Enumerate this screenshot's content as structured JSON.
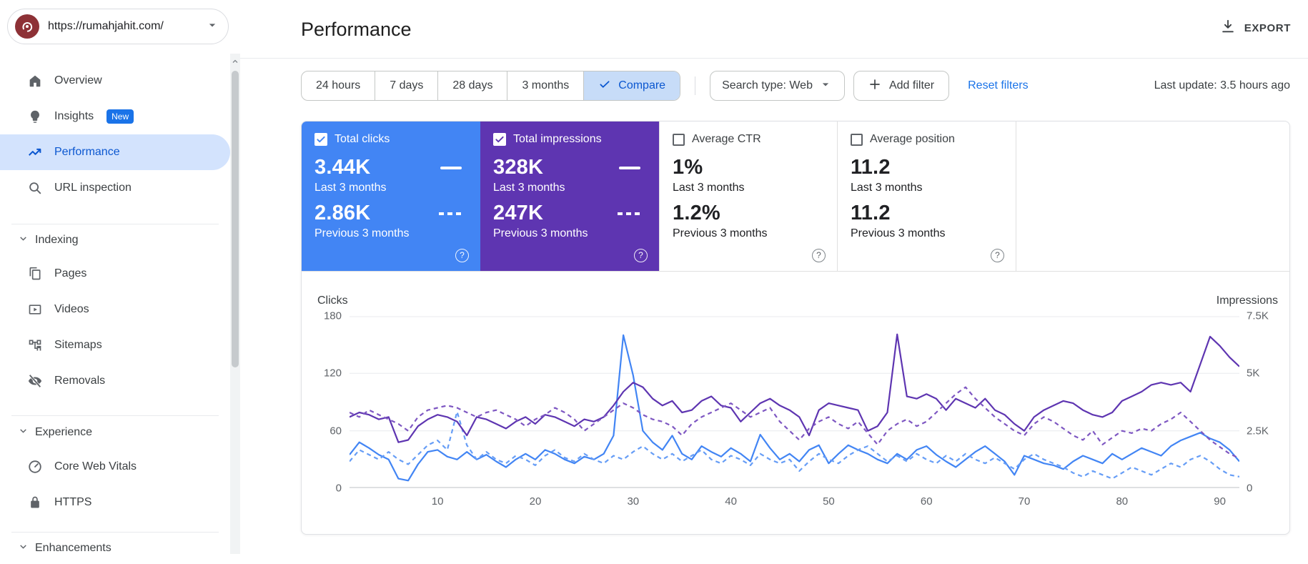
{
  "sidebar": {
    "property_url": "https://rumahjahit.com/",
    "items": [
      {
        "label": "Overview"
      },
      {
        "label": "Insights",
        "badge": "New"
      },
      {
        "label": "Performance"
      },
      {
        "label": "URL inspection"
      }
    ],
    "sections": [
      {
        "title": "Indexing",
        "items": [
          {
            "label": "Pages"
          },
          {
            "label": "Videos"
          },
          {
            "label": "Sitemaps"
          },
          {
            "label": "Removals"
          }
        ]
      },
      {
        "title": "Experience",
        "items": [
          {
            "label": "Core Web Vitals"
          },
          {
            "label": "HTTPS"
          }
        ]
      },
      {
        "title": "Enhancements",
        "items": []
      }
    ]
  },
  "header": {
    "title": "Performance",
    "export_label": "EXPORT"
  },
  "filters": {
    "ranges": [
      "24 hours",
      "7 days",
      "28 days",
      "3 months"
    ],
    "compare_label": "Compare",
    "search_type_label": "Search type: Web",
    "add_filter_label": "Add filter",
    "reset_label": "Reset filters",
    "last_update": "Last update: 3.5 hours ago"
  },
  "cards": [
    {
      "label": "Total clicks",
      "checked": true,
      "color": "#4285f4",
      "value": "3.44K",
      "period": "Last 3 months",
      "prev_value": "2.86K",
      "prev_period": "Previous 3 months"
    },
    {
      "label": "Total impressions",
      "checked": true,
      "color": "#5e35b1",
      "value": "328K",
      "period": "Last 3 months",
      "prev_value": "247K",
      "prev_period": "Previous 3 months"
    },
    {
      "label": "Average CTR",
      "checked": false,
      "value": "1%",
      "period": "Last 3 months",
      "prev_value": "1.2%",
      "prev_period": "Previous 3 months"
    },
    {
      "label": "Average position",
      "checked": false,
      "value": "11.2",
      "period": "Last 3 months",
      "prev_value": "11.2",
      "prev_period": "Previous 3 months"
    }
  ],
  "chart_data": {
    "type": "line",
    "x_range": [
      1,
      92
    ],
    "x_label_ticks": [
      "10",
      "20",
      "30",
      "40",
      "50",
      "60",
      "70",
      "80",
      "90"
    ],
    "grid": "horizontal",
    "left_axis": {
      "label": "Clicks",
      "max": 180,
      "ticks": [
        "180",
        "120",
        "60",
        "0"
      ]
    },
    "right_axis": {
      "label": "Impressions",
      "max": 7500,
      "ticks": [
        "7.5K",
        "5K",
        "2.5K",
        "0"
      ]
    },
    "series": [
      {
        "id": "clicks-current",
        "name": "Total clicks — Last 3 months",
        "axis": "left",
        "style": "solid",
        "color": "#4285f4",
        "values": [
          35,
          48,
          42,
          35,
          30,
          10,
          8,
          25,
          38,
          40,
          33,
          30,
          38,
          30,
          35,
          28,
          22,
          30,
          36,
          30,
          40,
          36,
          30,
          26,
          33,
          30,
          36,
          55,
          160,
          118,
          60,
          48,
          40,
          55,
          36,
          30,
          44,
          38,
          33,
          42,
          36,
          28,
          56,
          42,
          30,
          36,
          28,
          40,
          45,
          26,
          36,
          45,
          40,
          36,
          30,
          26,
          36,
          30,
          40,
          44,
          35,
          28,
          22,
          30,
          38,
          44,
          36,
          28,
          14,
          34,
          30,
          26,
          24,
          20,
          28,
          34,
          30,
          26,
          36,
          30,
          36,
          42,
          38,
          34,
          44,
          50,
          54,
          58,
          52,
          48,
          40,
          28
        ]
      },
      {
        "id": "clicks-previous",
        "name": "Total clicks — Previous 3 months",
        "axis": "left",
        "style": "dashed",
        "color": "#669df6",
        "values": [
          28,
          40,
          35,
          30,
          38,
          30,
          25,
          35,
          45,
          50,
          40,
          80,
          45,
          30,
          38,
          30,
          26,
          34,
          30,
          24,
          34,
          40,
          32,
          28,
          36,
          30,
          26,
          34,
          30,
          38,
          44,
          36,
          30,
          36,
          28,
          34,
          40,
          30,
          26,
          34,
          30,
          24,
          36,
          30,
          26,
          30,
          18,
          28,
          36,
          30,
          26,
          34,
          40,
          44,
          36,
          28,
          34,
          28,
          36,
          30,
          26,
          34,
          28,
          36,
          30,
          26,
          32,
          26,
          20,
          30,
          36,
          30,
          26,
          22,
          16,
          12,
          18,
          14,
          10,
          16,
          22,
          18,
          14,
          20,
          26,
          22,
          30,
          34,
          28,
          20,
          14,
          12
        ]
      },
      {
        "id": "impressions-current",
        "name": "Total impressions — Last 3 months",
        "axis": "right",
        "style": "solid",
        "color": "#5e35b1",
        "values": [
          3100,
          3300,
          3200,
          3000,
          3100,
          2000,
          2100,
          2700,
          3000,
          3200,
          3100,
          2900,
          2300,
          3100,
          3000,
          2800,
          2600,
          2900,
          3100,
          2800,
          3200,
          3100,
          2900,
          2700,
          3000,
          2900,
          3100,
          3600,
          4200,
          4600,
          4400,
          3900,
          3600,
          3800,
          3300,
          3400,
          3800,
          4000,
          3600,
          3500,
          2900,
          3300,
          3700,
          3900,
          3600,
          3400,
          3100,
          2300,
          3400,
          3700,
          3600,
          3500,
          3400,
          2500,
          2700,
          3300,
          6700,
          4000,
          3900,
          4100,
          3900,
          3400,
          3900,
          3700,
          3500,
          3900,
          3400,
          3200,
          2800,
          2500,
          3100,
          3400,
          3600,
          3800,
          3700,
          3400,
          3200,
          3100,
          3300,
          3800,
          4000,
          4200,
          4500,
          4600,
          4500,
          4600,
          4200,
          5400,
          6600,
          6200,
          5700,
          5300
        ]
      },
      {
        "id": "impressions-previous",
        "name": "Total impressions — Previous 3 months",
        "axis": "right",
        "style": "dashed",
        "color": "#7e57c2",
        "values": [
          3300,
          3100,
          3400,
          3200,
          3000,
          2800,
          2500,
          3100,
          3400,
          3500,
          3600,
          3500,
          3300,
          3100,
          3300,
          3400,
          3200,
          3000,
          2700,
          3000,
          3200,
          3500,
          3300,
          3000,
          2500,
          2800,
          3100,
          3400,
          3700,
          3500,
          3200,
          3000,
          2900,
          2700,
          2300,
          2800,
          3100,
          3300,
          3500,
          3700,
          3400,
          3100,
          3300,
          3500,
          2900,
          2500,
          2100,
          2600,
          2900,
          3100,
          2800,
          2600,
          2900,
          2400,
          1900,
          2500,
          2800,
          3000,
          2700,
          2900,
          3300,
          3700,
          4100,
          4400,
          3900,
          3500,
          3100,
          2800,
          2500,
          2300,
          2800,
          3100,
          2900,
          2600,
          2300,
          2100,
          2500,
          1900,
          2200,
          2500,
          2400,
          2600,
          2500,
          2800,
          3000,
          3300,
          2900,
          2500,
          2100,
          1800,
          1500,
          1300
        ]
      }
    ]
  }
}
